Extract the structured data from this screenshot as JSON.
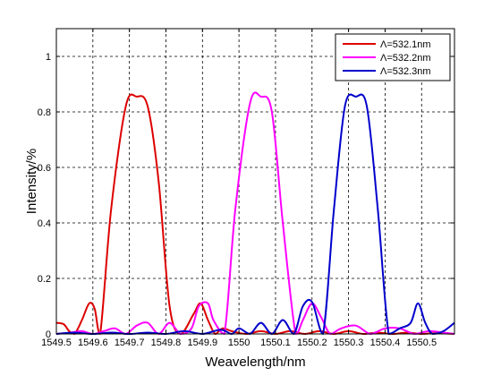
{
  "chart_data": {
    "type": "line",
    "title": "",
    "xlabel": "Weavelength/nm",
    "ylabel": "Intensity/%",
    "xlim": [
      1549.5,
      1550.59
    ],
    "ylim": [
      0,
      1.1
    ],
    "grid": true,
    "grid_style": "dashed",
    "legend_position": "top-right",
    "x_ticks": [
      1549.5,
      1549.6,
      1549.7,
      1549.8,
      1549.9,
      1550.0,
      1550.1,
      1550.2,
      1550.3,
      1550.4,
      1550.5
    ],
    "x_tick_labels": [
      "1549.5",
      "1549.6",
      "1549.7",
      "1549.8",
      "1549.9",
      "1550",
      "1550.1",
      "1550.2",
      "1550.3",
      "1550.4",
      "1550.5"
    ],
    "y_ticks": [
      0,
      0.2,
      0.4,
      0.6,
      0.8,
      1
    ],
    "y_tick_labels": [
      "0",
      "0.2",
      "0.4",
      "0.6",
      "0.8",
      "1"
    ],
    "series": [
      {
        "name": "Λ=532.1nm",
        "color": "#dd0000",
        "x": [
          1549.5,
          1549.52,
          1549.535,
          1549.55,
          1549.57,
          1549.59,
          1549.605,
          1549.62,
          1549.65,
          1549.69,
          1549.72,
          1549.75,
          1549.78,
          1549.81,
          1549.84,
          1549.875,
          1549.895,
          1549.915,
          1549.935,
          1549.955,
          1549.98,
          1550.02,
          1550.06,
          1550.1,
          1550.14,
          1550.18,
          1550.22,
          1550.26,
          1550.3,
          1550.34,
          1550.38,
          1550.42,
          1550.46,
          1550.5,
          1550.54,
          1550.59
        ],
        "y": [
          0.04,
          0.035,
          0.01,
          0.0,
          0.05,
          0.11,
          0.09,
          0.0,
          0.45,
          0.82,
          0.855,
          0.82,
          0.55,
          0.1,
          0.0,
          0.07,
          0.11,
          0.05,
          0.0,
          0.02,
          0.01,
          0.0,
          0.01,
          0.0,
          0.01,
          0.0,
          0.01,
          0.0,
          0.01,
          0.0,
          0.005,
          0.0,
          0.005,
          0.0,
          0.003,
          0.0
        ]
      },
      {
        "name": "Λ=532.2nm",
        "color": "#ff00ff",
        "x": [
          1549.5,
          1549.54,
          1549.57,
          1549.6,
          1549.63,
          1549.66,
          1549.69,
          1549.72,
          1549.75,
          1549.78,
          1549.81,
          1549.84,
          1549.87,
          1549.89,
          1549.915,
          1549.93,
          1549.96,
          1549.99,
          1550.03,
          1550.06,
          1550.09,
          1550.12,
          1550.155,
          1550.175,
          1550.2,
          1550.225,
          1550.25,
          1550.28,
          1550.32,
          1550.36,
          1550.4,
          1550.44,
          1550.48,
          1550.52,
          1550.56,
          1550.59
        ],
        "y": [
          0.0,
          0.005,
          0.01,
          0.0,
          0.01,
          0.02,
          0.0,
          0.03,
          0.04,
          0.0,
          0.04,
          0.0,
          0.02,
          0.1,
          0.11,
          0.05,
          0.0,
          0.45,
          0.83,
          0.855,
          0.8,
          0.4,
          0.0,
          0.05,
          0.11,
          0.06,
          0.0,
          0.02,
          0.03,
          0.0,
          0.02,
          0.02,
          0.0,
          0.01,
          0.005,
          0.0
        ]
      },
      {
        "name": "Λ=532.3nm",
        "color": "#0000cc",
        "x": [
          1549.5,
          1549.55,
          1549.6,
          1549.65,
          1549.7,
          1549.75,
          1549.8,
          1549.85,
          1549.9,
          1549.95,
          1549.98,
          1550.0,
          1550.03,
          1550.06,
          1550.09,
          1550.12,
          1550.15,
          1550.175,
          1550.2,
          1550.23,
          1550.26,
          1550.29,
          1550.32,
          1550.35,
          1550.38,
          1550.41,
          1550.44,
          1550.47,
          1550.49,
          1550.51,
          1550.53,
          1550.56,
          1550.59
        ],
        "y": [
          0.0,
          0.005,
          0.0,
          0.005,
          0.0,
          0.005,
          0.0,
          0.01,
          0.0,
          0.015,
          0.0,
          0.02,
          0.0,
          0.04,
          0.0,
          0.05,
          0.0,
          0.1,
          0.115,
          0.0,
          0.45,
          0.82,
          0.855,
          0.82,
          0.45,
          0.0,
          0.02,
          0.04,
          0.11,
          0.04,
          0.0,
          0.01,
          0.04
        ]
      }
    ]
  }
}
